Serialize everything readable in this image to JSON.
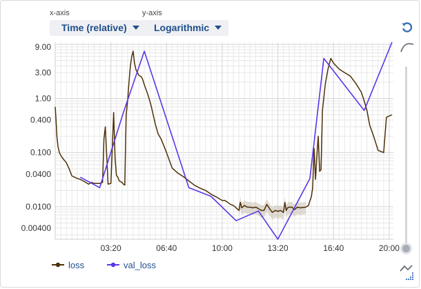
{
  "controls": {
    "xaxis_label": "x-axis",
    "yaxis_label": "y-axis",
    "xaxis_value": "Time (relative)",
    "yaxis_value": "Logarithmic"
  },
  "legend": [
    {
      "label": "loss",
      "color": "#4d2f06"
    },
    {
      "label": "val_loss",
      "color": "#5a35e8"
    }
  ],
  "chart_data": {
    "type": "line",
    "title": "",
    "xlabel": "Time (relative)",
    "ylabel": "",
    "yscale": "log",
    "xlim_minutes": [
      0,
      1215
    ],
    "ylim": [
      0.0025,
      11
    ],
    "xtick_minutes": [
      200,
      400,
      600,
      800,
      1000,
      1200
    ],
    "xtick_labels": [
      "03:20",
      "06:40",
      "10:00",
      "13:20",
      "16:40",
      "20:00"
    ],
    "ytick_values": [
      9.0,
      3.0,
      1.0,
      0.4,
      0.1,
      0.04,
      0.01,
      0.004
    ],
    "ytick_labels": [
      "9.00",
      "3.00",
      "1.00",
      "0.400",
      "0.100",
      "0.0400",
      "0.0100",
      "0.00400"
    ],
    "grid": true,
    "legend_position": "bottom-left",
    "series": [
      {
        "name": "loss",
        "color": "#4d2f06",
        "x": [
          0,
          3,
          6,
          10,
          15,
          22,
          30,
          40,
          50,
          60,
          70,
          80,
          90,
          100,
          110,
          120,
          130,
          140,
          160,
          170,
          175,
          180,
          190,
          200,
          205,
          210,
          215,
          220,
          225,
          230,
          240,
          245,
          250,
          255,
          260,
          265,
          270,
          275,
          280,
          285,
          290,
          300,
          305,
          310,
          315,
          320,
          330,
          340,
          345,
          350,
          360,
          370,
          380,
          400,
          420,
          440,
          460,
          480,
          500,
          520,
          540,
          560,
          580,
          590,
          600,
          610,
          620,
          630,
          640,
          650,
          660,
          665,
          670,
          680,
          690,
          700,
          710,
          720,
          730,
          740,
          750,
          760,
          770,
          780,
          790,
          800,
          810,
          820,
          825,
          830,
          835,
          840,
          850,
          860,
          870,
          880,
          900,
          910,
          915,
          920,
          925,
          930,
          935,
          940,
          945,
          950,
          955,
          960,
          970,
          980,
          990,
          1000,
          1020,
          1040,
          1060,
          1080,
          1100,
          1110,
          1120,
          1130,
          1140,
          1150,
          1160,
          1180,
          1190,
          1210
        ],
        "y": [
          0.7,
          0.4,
          0.2,
          0.13,
          0.1,
          0.085,
          0.075,
          0.065,
          0.05,
          0.037,
          0.035,
          0.033,
          0.032,
          0.03,
          0.028,
          0.026,
          0.028,
          0.027,
          0.027,
          0.028,
          0.18,
          0.3,
          0.026,
          0.027,
          0.12,
          0.55,
          0.08,
          0.038,
          0.035,
          0.03,
          0.028,
          0.026,
          0.025,
          0.5,
          0.9,
          2.0,
          4.0,
          6.0,
          7.5,
          4.5,
          3.4,
          2.7,
          2.6,
          2.5,
          2.2,
          1.8,
          1.3,
          0.9,
          0.72,
          0.55,
          0.33,
          0.22,
          0.18,
          0.1,
          0.052,
          0.042,
          0.036,
          0.03,
          0.025,
          0.022,
          0.02,
          0.017,
          0.015,
          0.014,
          0.013,
          0.013,
          0.012,
          0.011,
          0.0105,
          0.0095,
          0.0085,
          0.012,
          0.0095,
          0.0105,
          0.0098,
          0.0098,
          0.0095,
          0.0098,
          0.0092,
          0.0085,
          0.0085,
          0.011,
          0.0092,
          0.0078,
          0.0085,
          0.0082,
          0.0085,
          0.0078,
          0.012,
          0.0085,
          0.0095,
          0.0098,
          0.0098,
          0.0088,
          0.0098,
          0.0095,
          0.0098,
          0.0105,
          0.0128,
          0.015,
          0.022,
          0.12,
          0.032,
          0.085,
          0.2,
          0.045,
          0.048,
          0.6,
          1.8,
          3.5,
          5.5,
          4.5,
          3.5,
          3.0,
          2.6,
          1.9,
          1.3,
          0.9,
          0.6,
          0.32,
          0.23,
          0.16,
          0.11,
          0.1,
          0.45,
          0.5
        ]
      },
      {
        "name": "val_loss",
        "color": "#5a35e8",
        "x": [
          90,
          160,
          245,
          320,
          480,
          560,
          650,
          730,
          800,
          915,
          965,
          1110,
          1210
        ],
        "y": [
          0.035,
          0.0225,
          0.55,
          7.5,
          0.0225,
          0.0155,
          0.0055,
          0.0083,
          0.0018,
          0.033,
          5.5,
          0.6,
          11
        ]
      }
    ]
  }
}
